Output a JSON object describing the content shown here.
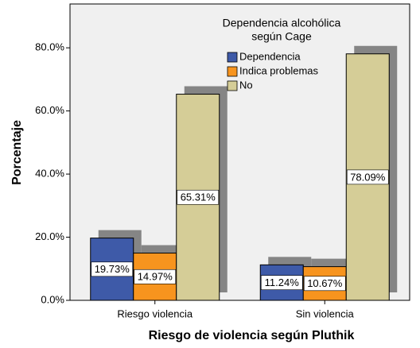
{
  "chart_data": {
    "type": "bar",
    "categories": [
      "Riesgo violencia",
      "Sin violencia"
    ],
    "series": [
      {
        "name": "Dependencia",
        "color": "#3e5aa8",
        "values": [
          19.73,
          11.24
        ],
        "value_labels": [
          "19.73%",
          "11.24%"
        ]
      },
      {
        "name": "Indica problemas",
        "color": "#f7941e",
        "values": [
          14.97,
          10.67
        ],
        "value_labels": [
          "14.97%",
          "10.67%"
        ]
      },
      {
        "name": "No",
        "color": "#d5cd97",
        "values": [
          65.31,
          78.09
        ],
        "value_labels": [
          "65.31%",
          "78.09%"
        ]
      }
    ],
    "xlabel": "Riesgo de violencia según Pluthik",
    "ylabel": "Porcentaje",
    "legend_title": [
      "Dependencia alcohólica",
      "según Cage"
    ],
    "ylim": [
      0,
      80.8
    ],
    "yticks": [
      {
        "value": 0,
        "label": "0.0%"
      },
      {
        "value": 20,
        "label": "20.0%"
      },
      {
        "value": 40,
        "label": "40.0%"
      },
      {
        "value": 60,
        "label": "60.0%"
      },
      {
        "value": 80,
        "label": "80.0%"
      }
    ]
  }
}
